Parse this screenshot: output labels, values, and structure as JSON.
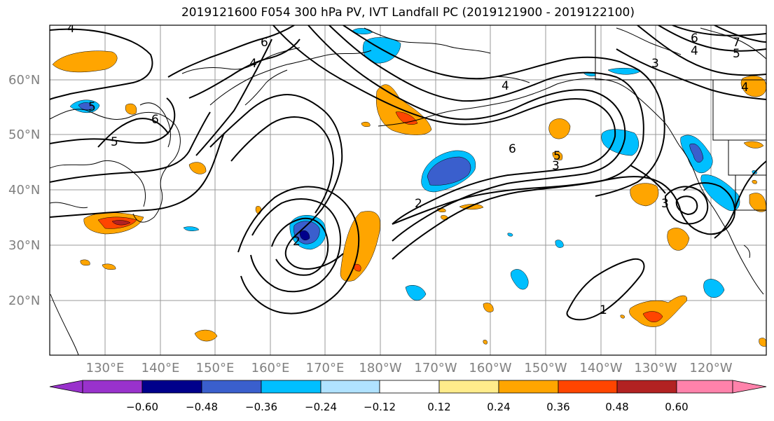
{
  "title": "2019121600 F054 300 hPa PV, IVT Landfall PC (2019121900 - 2019122100)",
  "lat_labels": [
    "60°N",
    "50°N",
    "40°N",
    "30°N",
    "20°N"
  ],
  "lon_labels": [
    "130°E",
    "140°E",
    "150°E",
    "160°E",
    "170°E",
    "180°W",
    "170°W",
    "160°W",
    "150°W",
    "140°W",
    "130°W",
    "120°W"
  ],
  "colorbar": {
    "colors": [
      "#9932cc",
      "#00008b",
      "#3a5fcd",
      "#00bfff",
      "#b0e2ff",
      "#ffffff",
      "#ffec8b",
      "#ffa500",
      "#ff4500",
      "#b22222",
      "#ff82ab"
    ],
    "tick_labels": [
      "−0.60",
      "−0.48",
      "−0.36",
      "−0.24",
      "−0.12",
      "0.12",
      "0.24",
      "0.36",
      "0.48",
      "0.60"
    ]
  },
  "contour_labels": [
    "4",
    "6",
    "4",
    "5",
    "6",
    "5",
    "4",
    "3",
    "4",
    "5",
    "6",
    "7",
    "3",
    "6",
    "5",
    "2",
    "2",
    "3",
    "1",
    "4"
  ]
}
